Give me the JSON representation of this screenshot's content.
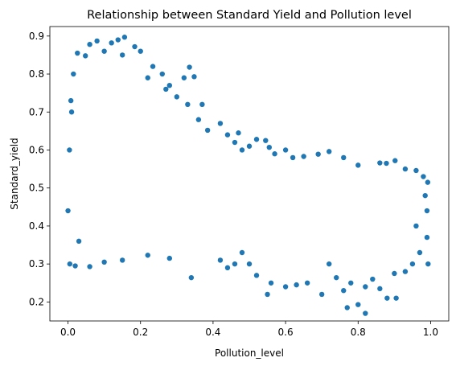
{
  "chart_data": {
    "type": "scatter",
    "title": "Relationship between Standard Yield and Pollution level",
    "xlabel": "Pollution_level",
    "ylabel": "Standard_yield",
    "xlim": [
      -0.05,
      1.05
    ],
    "ylim": [
      0.15,
      0.925
    ],
    "xticks": [
      "0.0",
      "0.2",
      "0.4",
      "0.6",
      "0.8",
      "1.0"
    ],
    "yticks": [
      "0.2",
      "0.3",
      "0.4",
      "0.5",
      "0.6",
      "0.7",
      "0.8",
      "0.9"
    ],
    "grid": false,
    "legend": "none",
    "marker_color": "#1f77b4",
    "points": [
      [
        0.156,
        0.897
      ],
      [
        0.138,
        0.89
      ],
      [
        0.08,
        0.887
      ],
      [
        0.12,
        0.882
      ],
      [
        0.06,
        0.878
      ],
      [
        0.184,
        0.872
      ],
      [
        0.026,
        0.855
      ],
      [
        0.2,
        0.86
      ],
      [
        0.1,
        0.86
      ],
      [
        0.048,
        0.848
      ],
      [
        0.234,
        0.82
      ],
      [
        0.15,
        0.85
      ],
      [
        0.22,
        0.79
      ],
      [
        0.26,
        0.8
      ],
      [
        0.335,
        0.818
      ],
      [
        0.28,
        0.77
      ],
      [
        0.32,
        0.79
      ],
      [
        0.348,
        0.793
      ],
      [
        0.3,
        0.74
      ],
      [
        0.33,
        0.72
      ],
      [
        0.36,
        0.68
      ],
      [
        0.27,
        0.76
      ],
      [
        0.37,
        0.72
      ],
      [
        0.385,
        0.652
      ],
      [
        0.42,
        0.67
      ],
      [
        0.44,
        0.64
      ],
      [
        0.46,
        0.62
      ],
      [
        0.47,
        0.645
      ],
      [
        0.48,
        0.6
      ],
      [
        0.5,
        0.61
      ],
      [
        0.52,
        0.628
      ],
      [
        0.555,
        0.607
      ],
      [
        0.57,
        0.59
      ],
      [
        0.545,
        0.625
      ],
      [
        0.6,
        0.6
      ],
      [
        0.62,
        0.58
      ],
      [
        0.65,
        0.583
      ],
      [
        0.69,
        0.589
      ],
      [
        0.72,
        0.596
      ],
      [
        0.76,
        0.58
      ],
      [
        0.8,
        0.56
      ],
      [
        0.86,
        0.566
      ],
      [
        0.878,
        0.565
      ],
      [
        0.902,
        0.572
      ],
      [
        0.93,
        0.55
      ],
      [
        0.96,
        0.546
      ],
      [
        0.98,
        0.53
      ],
      [
        0.992,
        0.515
      ],
      [
        0.985,
        0.48
      ],
      [
        0.99,
        0.44
      ],
      [
        0.96,
        0.4
      ],
      [
        0.99,
        0.37
      ],
      [
        0.97,
        0.33
      ],
      [
        0.993,
        0.3
      ],
      [
        0.95,
        0.3
      ],
      [
        0.93,
        0.28
      ],
      [
        0.9,
        0.275
      ],
      [
        0.88,
        0.21
      ],
      [
        0.905,
        0.21
      ],
      [
        0.86,
        0.235
      ],
      [
        0.84,
        0.26
      ],
      [
        0.82,
        0.24
      ],
      [
        0.8,
        0.193
      ],
      [
        0.78,
        0.25
      ],
      [
        0.76,
        0.23
      ],
      [
        0.74,
        0.264
      ],
      [
        0.72,
        0.3
      ],
      [
        0.7,
        0.22
      ],
      [
        0.77,
        0.185
      ],
      [
        0.82,
        0.17
      ],
      [
        0.66,
        0.25
      ],
      [
        0.63,
        0.245
      ],
      [
        0.6,
        0.24
      ],
      [
        0.56,
        0.25
      ],
      [
        0.55,
        0.22
      ],
      [
        0.52,
        0.27
      ],
      [
        0.5,
        0.3
      ],
      [
        0.48,
        0.33
      ],
      [
        0.46,
        0.3
      ],
      [
        0.44,
        0.29
      ],
      [
        0.42,
        0.31
      ],
      [
        0.34,
        0.264
      ],
      [
        0.28,
        0.315
      ],
      [
        0.22,
        0.323
      ],
      [
        0.15,
        0.31
      ],
      [
        0.1,
        0.305
      ],
      [
        0.06,
        0.293
      ],
      [
        0.02,
        0.295
      ],
      [
        0.005,
        0.3
      ],
      [
        0.0,
        0.44
      ],
      [
        0.004,
        0.6
      ],
      [
        0.01,
        0.7
      ],
      [
        0.015,
        0.8
      ],
      [
        0.008,
        0.73
      ],
      [
        0.03,
        0.36
      ]
    ]
  }
}
